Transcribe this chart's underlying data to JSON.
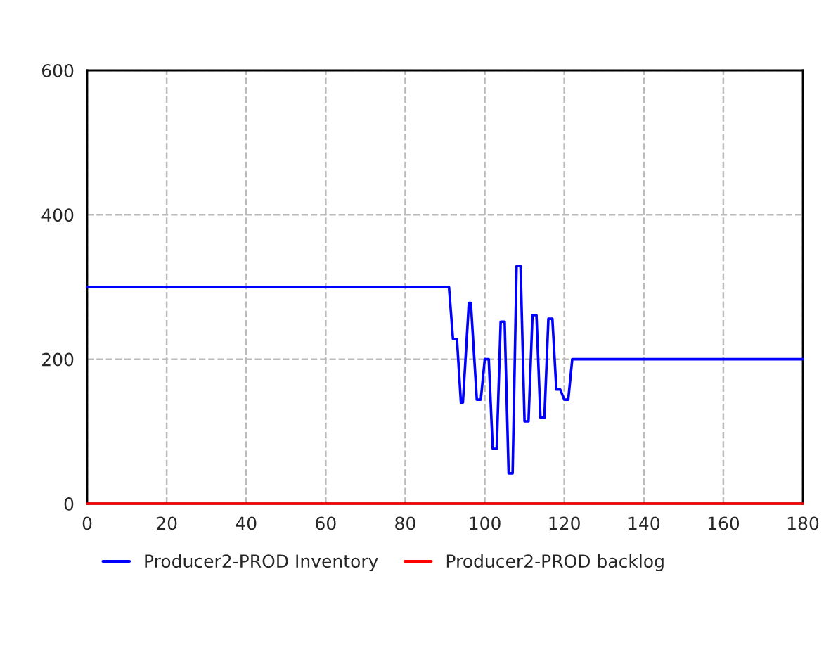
{
  "chart_data": {
    "type": "line",
    "xlim": [
      0,
      180
    ],
    "ylim": [
      0,
      600
    ],
    "xticks": [
      0,
      20,
      40,
      60,
      80,
      100,
      120,
      140,
      160,
      180
    ],
    "yticks": [
      0,
      200,
      400,
      600
    ],
    "grid": true,
    "legend": "bottom",
    "line_style": "solid",
    "series": [
      {
        "name": "Producer2-PROD Inventory",
        "color": "#0000ff",
        "x": [
          0,
          91,
          92,
          93,
          94,
          94.5,
          96,
          96.5,
          98,
          99,
          100,
          101,
          102,
          103,
          104,
          105,
          106,
          107,
          108,
          109,
          110,
          111,
          112,
          113,
          114,
          115,
          116,
          117,
          118,
          119,
          120,
          121,
          122,
          180
        ],
        "values": [
          300,
          300,
          228,
          228,
          140,
          140,
          278,
          278,
          144,
          144,
          200,
          200,
          76,
          76,
          252,
          252,
          42,
          42,
          329,
          329,
          114,
          114,
          261,
          261,
          119,
          119,
          256,
          256,
          158,
          158,
          144,
          144,
          200,
          200
        ]
      },
      {
        "name": "Producer2-PROD backlog",
        "color": "#ff0000",
        "x": [
          0,
          180
        ],
        "values": [
          0,
          0
        ]
      }
    ]
  }
}
